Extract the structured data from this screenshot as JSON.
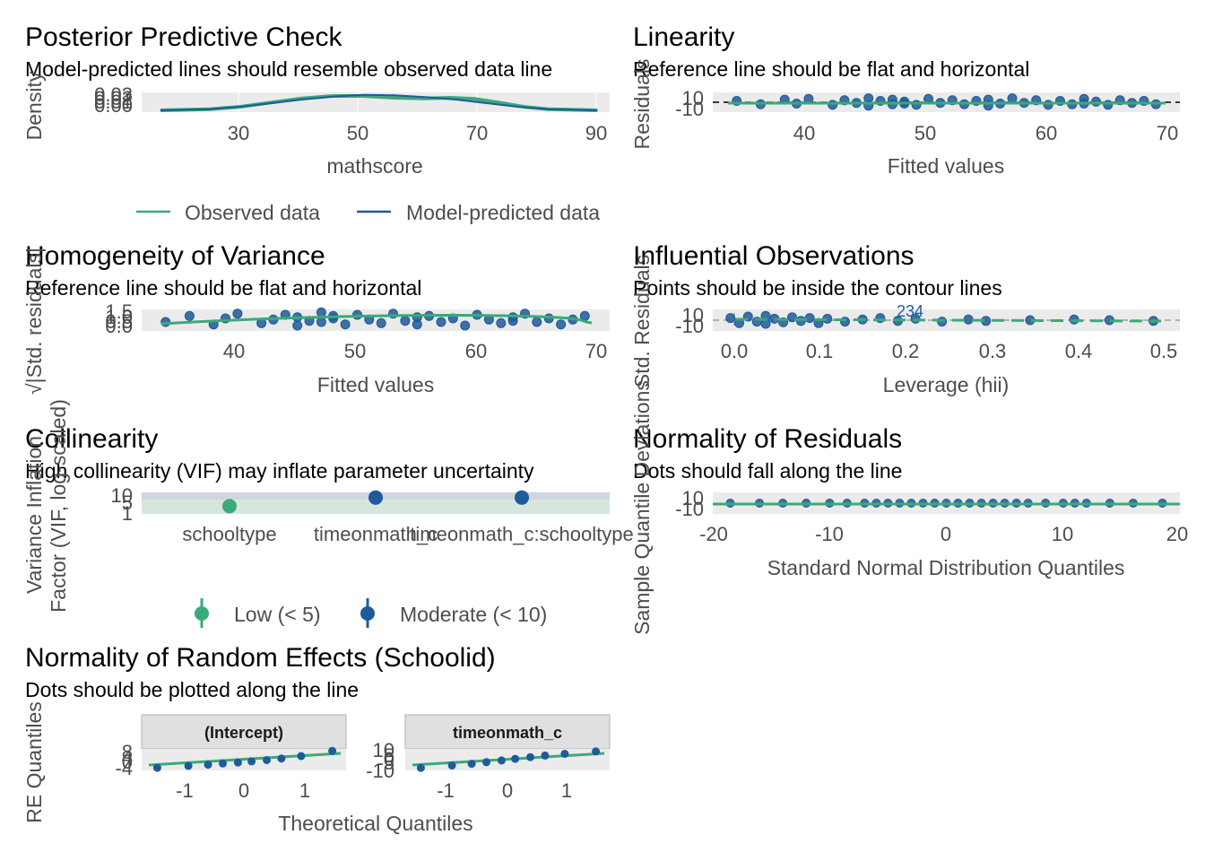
{
  "colors": {
    "green": "#3aaa78",
    "blue": "#1f5a9a",
    "panel": "#ebebeb",
    "grid": "#ffffff",
    "text": "#4d4d4d"
  },
  "chart_data": [
    {
      "id": "ppc",
      "type": "line",
      "title": "Posterior Predictive Check",
      "subtitle": "Model-predicted lines should resemble observed data line",
      "xlabel": "mathscore",
      "ylabel": "Density",
      "xlim": [
        17,
        90
      ],
      "ylim": [
        0,
        0.03
      ],
      "xticks": [
        "30",
        "50",
        "70",
        "90"
      ],
      "yticks": [
        "0.00",
        "0.01",
        "0.02",
        "0.03"
      ],
      "series": [
        {
          "name": "Observed data",
          "color": "#3aaa78",
          "points": [
            [
              17,
              0.0
            ],
            [
              25,
              0.002
            ],
            [
              30,
              0.006
            ],
            [
              35,
              0.013
            ],
            [
              40,
              0.02
            ],
            [
              45,
              0.024
            ],
            [
              50,
              0.024
            ],
            [
              55,
              0.021
            ],
            [
              60,
              0.02
            ],
            [
              64,
              0.021
            ],
            [
              68,
              0.019
            ],
            [
              72,
              0.013
            ],
            [
              76,
              0.006
            ],
            [
              80,
              0.002
            ],
            [
              88,
              0.0
            ]
          ]
        },
        {
          "name": "Model-predicted data",
          "color": "#1f5a9a",
          "points": [
            [
              17,
              0.0
            ],
            [
              25,
              0.002
            ],
            [
              30,
              0.006
            ],
            [
              35,
              0.012
            ],
            [
              40,
              0.018
            ],
            [
              45,
              0.023
            ],
            [
              50,
              0.026
            ],
            [
              55,
              0.025
            ],
            [
              60,
              0.022
            ],
            [
              65,
              0.018
            ],
            [
              70,
              0.012
            ],
            [
              75,
              0.006
            ],
            [
              80,
              0.002
            ],
            [
              88,
              0.0
            ]
          ]
        }
      ]
    },
    {
      "id": "linearity",
      "type": "scatter",
      "title": "Linearity",
      "subtitle": "Reference line should be flat and horizontal",
      "xlabel": "Fitted values",
      "ylabel": "Residuals",
      "xlim": [
        32,
        71
      ],
      "ylim": [
        -15,
        15
      ],
      "xticks": [
        "40",
        "50",
        "60",
        "70"
      ],
      "yticks": [
        "-10",
        "10"
      ],
      "x": [
        34,
        36,
        38,
        39,
        40,
        42,
        43,
        44,
        45,
        45,
        46,
        47,
        47,
        48,
        48,
        49,
        50,
        51,
        52,
        53,
        54,
        55,
        55,
        56,
        57,
        58,
        59,
        60,
        61,
        62,
        63,
        63,
        64,
        65,
        66,
        67,
        68,
        69
      ],
      "y": [
        2,
        -3,
        4,
        -2,
        5,
        -4,
        3,
        -1,
        6,
        -5,
        2,
        -3,
        4,
        -2,
        1,
        -4,
        5,
        -1,
        3,
        -3,
        2,
        -5,
        4,
        -2,
        6,
        -1,
        3,
        -4,
        2,
        -3,
        5,
        -2,
        1,
        -4,
        3,
        -1,
        2,
        -3
      ]
    },
    {
      "id": "homogeneity",
      "type": "scatter",
      "title": "Homogeneity of Variance",
      "subtitle": "Reference line should be flat and horizontal",
      "xlabel": "Fitted values",
      "ylabel": "√|Std. residuals|",
      "xlim": [
        32,
        71
      ],
      "ylim": [
        0,
        1.5
      ],
      "xticks": [
        "40",
        "50",
        "60",
        "70"
      ],
      "yticks": [
        "0.0",
        "0.5",
        "1.0",
        "1.5"
      ],
      "x": [
        34,
        36,
        38,
        39,
        40,
        42,
        43,
        44,
        45,
        45,
        46,
        47,
        47,
        48,
        48,
        49,
        50,
        51,
        52,
        53,
        54,
        55,
        55,
        56,
        57,
        58,
        59,
        60,
        61,
        62,
        63,
        63,
        64,
        65,
        66,
        67,
        68,
        69
      ],
      "y": [
        0.6,
        1.1,
        0.4,
        0.9,
        1.3,
        0.5,
        0.8,
        1.2,
        0.3,
        1.0,
        0.7,
        1.4,
        0.6,
        0.9,
        1.1,
        0.4,
        1.2,
        0.8,
        0.5,
        1.3,
        0.7,
        1.0,
        0.4,
        1.1,
        0.6,
        0.9,
        0.3,
        1.2,
        0.8,
        0.5,
        1.0,
        0.7,
        1.3,
        0.6,
        0.9,
        0.4,
        0.8,
        1.1
      ]
    },
    {
      "id": "influential",
      "type": "scatter",
      "title": "Influential Observations",
      "subtitle": "Points should be inside the contour lines",
      "xlabel": "Leverage (hii)",
      "ylabel": "Std. Residuals",
      "xlim": [
        -0.01,
        0.52
      ],
      "ylim": [
        -15,
        15
      ],
      "xticks": [
        "0.0",
        "0.1",
        "0.2",
        "0.3",
        "0.4",
        "0.5"
      ],
      "yticks": [
        "-10",
        "10"
      ],
      "point_labels": [
        "234"
      ],
      "x": [
        0.01,
        0.02,
        0.03,
        0.04,
        0.05,
        0.05,
        0.06,
        0.07,
        0.08,
        0.09,
        0.1,
        0.11,
        0.12,
        0.14,
        0.16,
        0.18,
        0.2,
        0.22,
        0.25,
        0.28,
        0.3,
        0.35,
        0.4,
        0.44,
        0.49
      ],
      "y": [
        3,
        -4,
        5,
        -2,
        6,
        -5,
        2,
        -3,
        4,
        -1,
        3,
        -4,
        2,
        -2,
        1,
        3,
        -1,
        2,
        -2,
        1,
        -1,
        0,
        1,
        0,
        -1
      ]
    },
    {
      "id": "collinearity",
      "type": "scatter",
      "title": "Collinearity",
      "subtitle": "High collinearity (VIF) may inflate parameter uncertainty",
      "ylabel": "Variance Inflation\nFactor (VIF, log-scaled)",
      "categories": [
        "schooltype",
        "timeonmath_c",
        "timeonmath_c:schooltype"
      ],
      "values": [
        3.2,
        6.5,
        6.5
      ],
      "levels": [
        "Low (< 5)",
        "Moderate (< 10)",
        "Moderate (< 10)"
      ],
      "yticks": [
        "1",
        "5",
        "10"
      ],
      "legend": [
        "Low (< 5)",
        "Moderate (< 10)"
      ]
    },
    {
      "id": "normality",
      "type": "scatter",
      "title": "Normality of Residuals",
      "subtitle": "Dots should fall along the line",
      "xlabel": "Standard Normal Distribution Quantiles",
      "ylabel": "Sample Quantile Deviations",
      "xlim": [
        -20,
        20
      ],
      "ylim": [
        -15,
        15
      ],
      "xticks": [
        "-20",
        "-10",
        "0",
        "10",
        "20"
      ],
      "yticks": [
        "-10",
        "10"
      ],
      "x": [
        -18.5,
        -16,
        -14,
        -12,
        -10,
        -8.5,
        -7,
        -6,
        -5,
        -4,
        -3,
        -2,
        -1,
        0,
        1,
        2,
        3,
        4,
        5,
        6,
        7,
        8.5,
        10,
        11,
        12,
        14,
        16,
        18.5
      ],
      "y": [
        0,
        0,
        0,
        0,
        0,
        0,
        0,
        0,
        0,
        0,
        0,
        0,
        0,
        0,
        0,
        0,
        0,
        0,
        0,
        0,
        0,
        0,
        0,
        0,
        0,
        0,
        0,
        0
      ]
    },
    {
      "id": "re",
      "type": "scatter",
      "title": "Normality of Random Effects (Schoolid)",
      "subtitle": "Dots should be plotted along the line",
      "xlabel": "Theoretical Quantiles",
      "ylabel": "RE Quantiles",
      "facets": [
        {
          "strip": "(Intercept)",
          "yticks": [
            "-4",
            "0",
            "4",
            "8"
          ],
          "ylim": [
            -6,
            9
          ],
          "x": [
            -1.55,
            -1.0,
            -0.65,
            -0.39,
            -0.12,
            0.12,
            0.39,
            0.65,
            1.0,
            1.55
          ],
          "y": [
            -4.2,
            -2.9,
            -2.0,
            -1.2,
            -0.5,
            0.3,
            1.2,
            2.3,
            4.0,
            7.6
          ]
        },
        {
          "strip": "timeonmath_c",
          "yticks": [
            "-10",
            "-5",
            "0",
            "5",
            "10"
          ],
          "ylim": [
            -13,
            13
          ],
          "x": [
            -1.55,
            -1.0,
            -0.65,
            -0.39,
            -0.12,
            0.12,
            0.39,
            0.65,
            1.0,
            1.55
          ],
          "y": [
            -10,
            -7,
            -5,
            -3,
            -1,
            1,
            3,
            5,
            7,
            10
          ]
        }
      ],
      "xlim": [
        -1.7,
        1.7
      ],
      "xticks": [
        "-1",
        "0",
        "1"
      ]
    }
  ],
  "legends": {
    "ppc": [
      "Observed data",
      "Model-predicted data"
    ],
    "vif": [
      "Low (< 5)",
      "Moderate (< 10)"
    ]
  }
}
